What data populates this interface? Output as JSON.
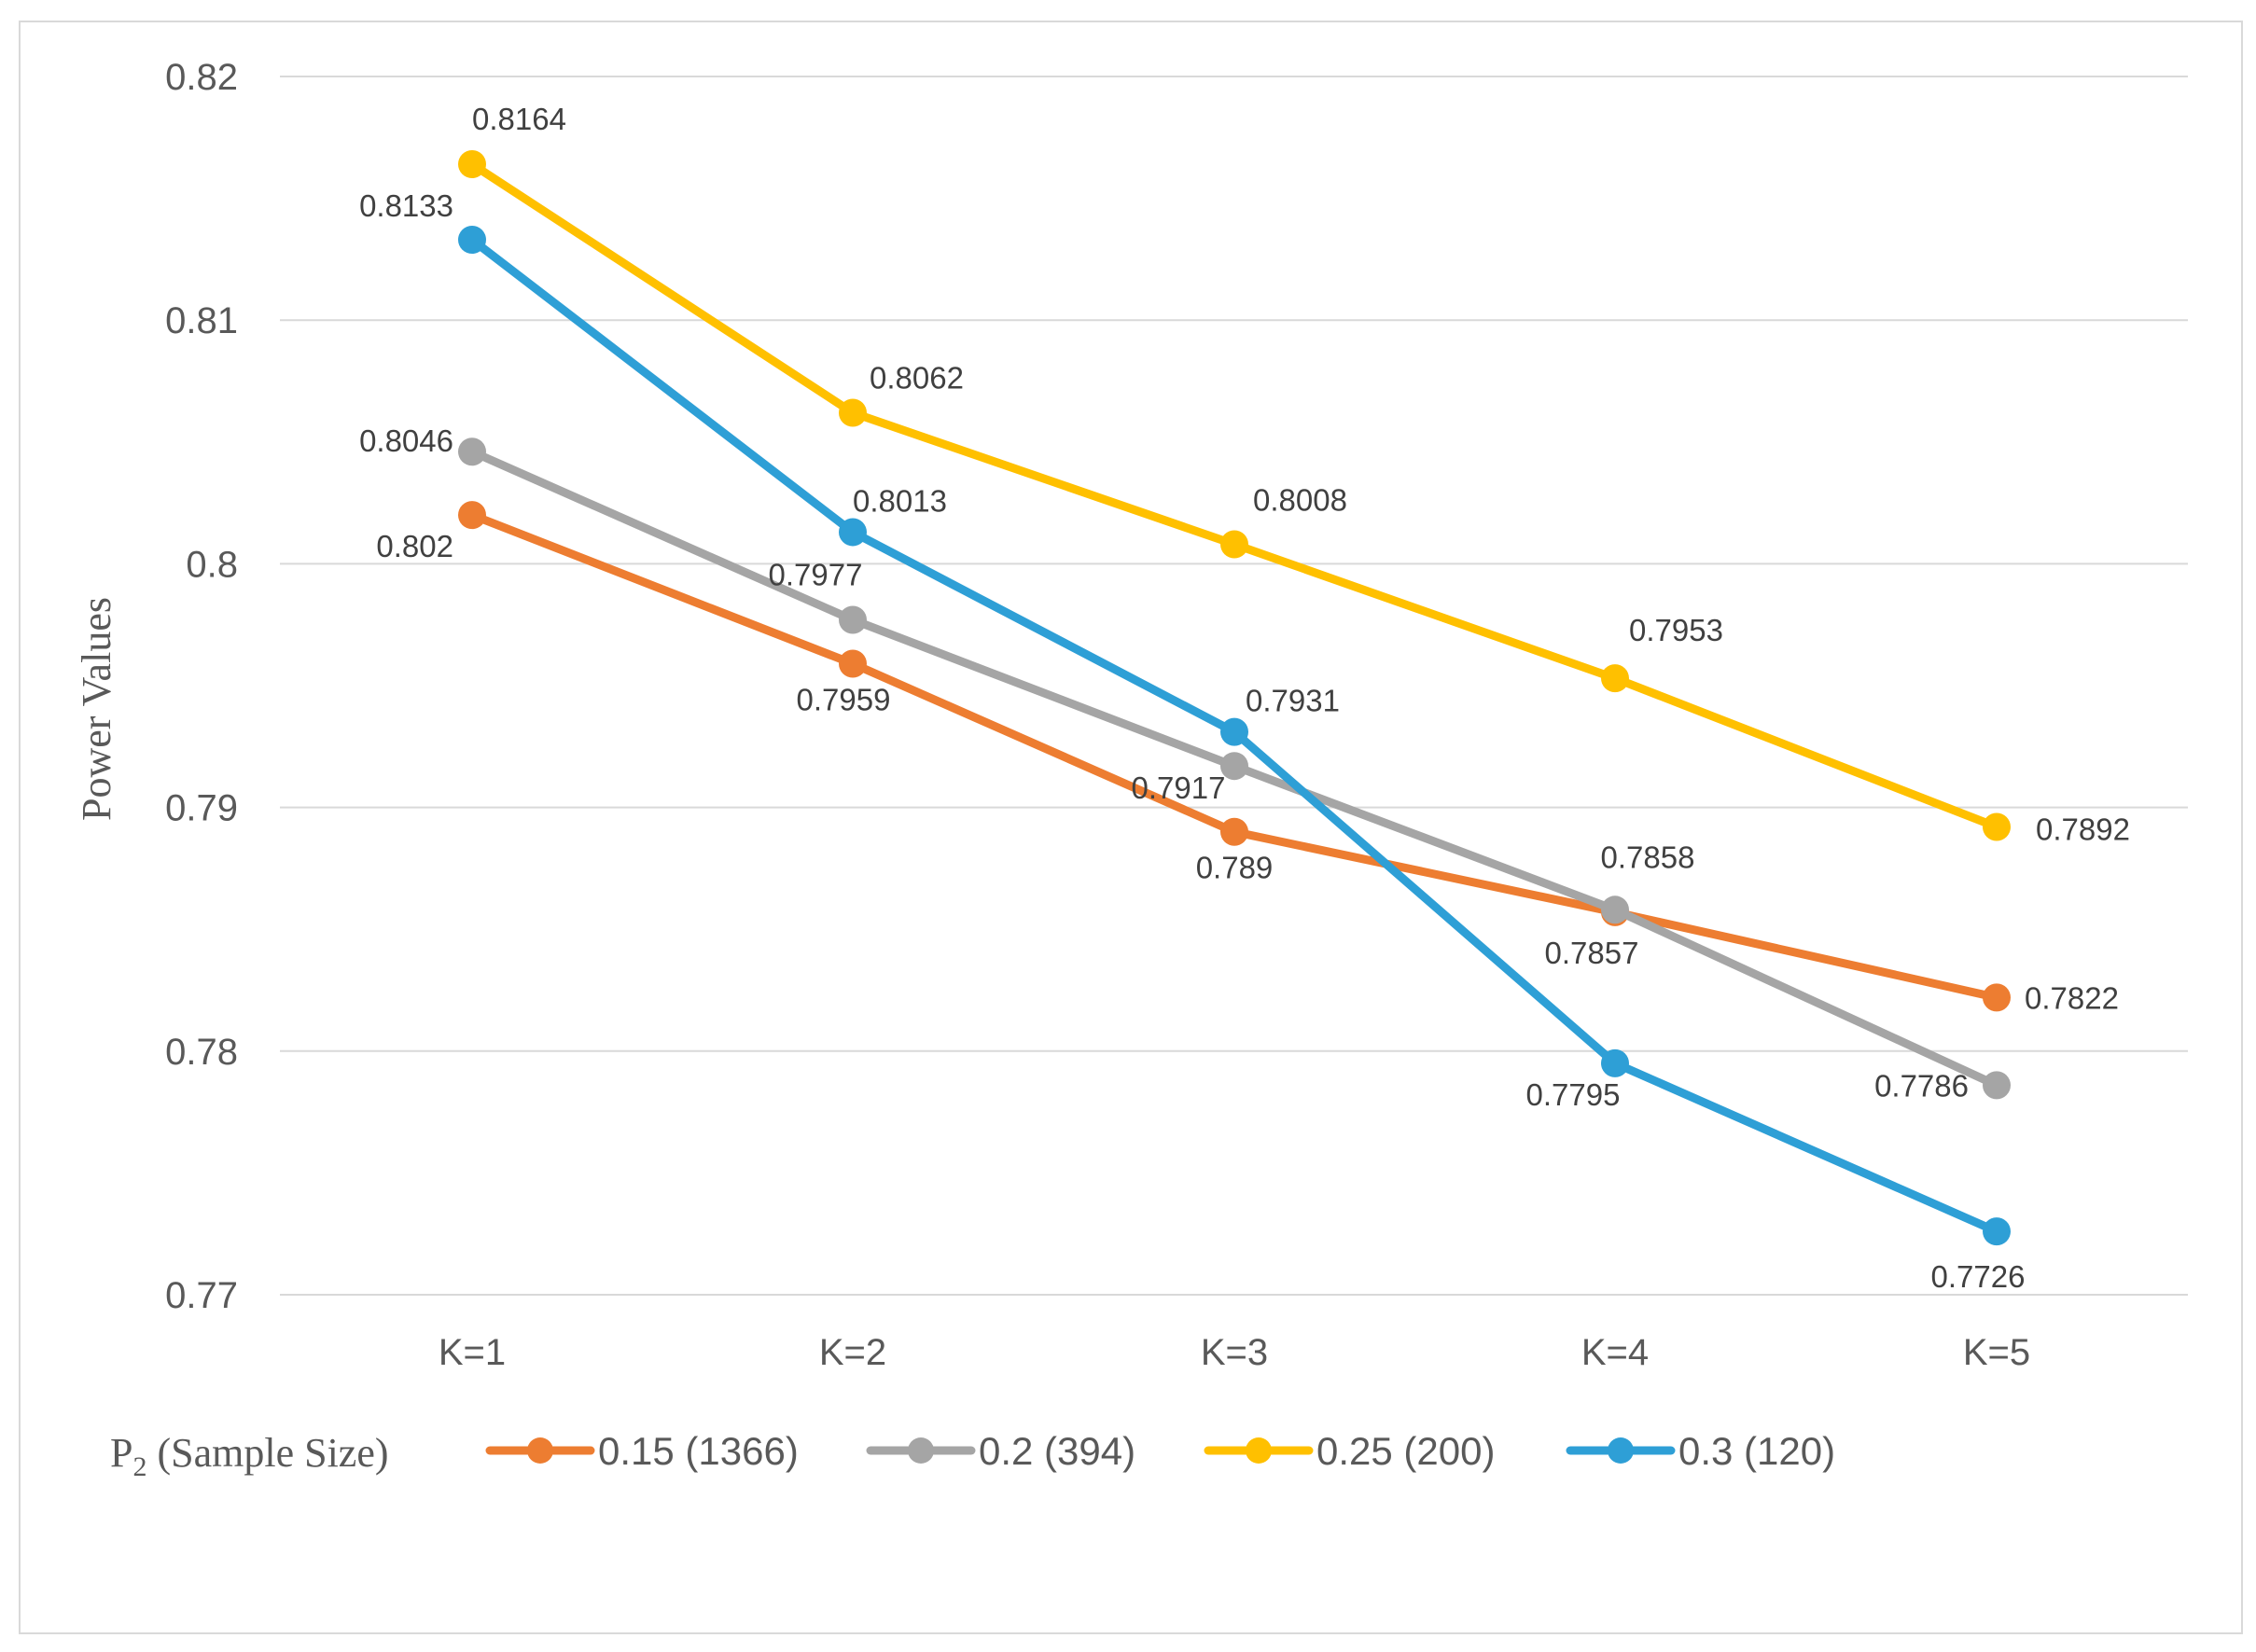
{
  "chart_data": {
    "type": "line",
    "title": "",
    "xlabel": "",
    "ylabel": "Power Values",
    "categories": [
      "K=1",
      "K=2",
      "K=3",
      "K=4",
      "K=5"
    ],
    "ylim": [
      0.77,
      0.82
    ],
    "yticks": [
      0.77,
      0.78,
      0.79,
      0.8,
      0.81,
      0.82
    ],
    "ytick_labels": [
      "0.77",
      "0.78",
      "0.79",
      "0.8",
      "0.81",
      "0.82"
    ],
    "grid": true,
    "legend_position": "bottom",
    "legend_title": "P",
    "legend_title_sub": "2",
    "legend_title_rest": " (Sample Size)",
    "series": [
      {
        "name": "0.15 (1366)",
        "color": "#ED7D31",
        "values": [
          0.802,
          0.7959,
          0.789,
          0.7857,
          0.7822
        ],
        "labels": [
          "0.802",
          "0.7959",
          "0.789",
          "0.7857",
          "0.7822"
        ]
      },
      {
        "name": "0.2 (394)",
        "color": "#A5A5A5",
        "values": [
          0.8046,
          0.7977,
          0.7917,
          0.7858,
          0.7786
        ],
        "labels": [
          "0.8046",
          "0.7977",
          "0.7917",
          "0.7858",
          "0.7786"
        ]
      },
      {
        "name": "0.25 (200)",
        "color": "#FFC000",
        "values": [
          0.8164,
          0.8062,
          0.8008,
          0.7953,
          0.7892
        ],
        "labels": [
          "0.8164",
          "0.8062",
          "0.8008",
          "0.7953",
          "0.7892"
        ]
      },
      {
        "name": "0.3 (120)",
        "color": "#2E9FD6",
        "values": [
          0.8133,
          0.8013,
          0.7931,
          0.7795,
          0.7726
        ],
        "labels": [
          "0.8133",
          "0.8013",
          "0.7931",
          "0.7795",
          "0.7726"
        ]
      }
    ]
  }
}
